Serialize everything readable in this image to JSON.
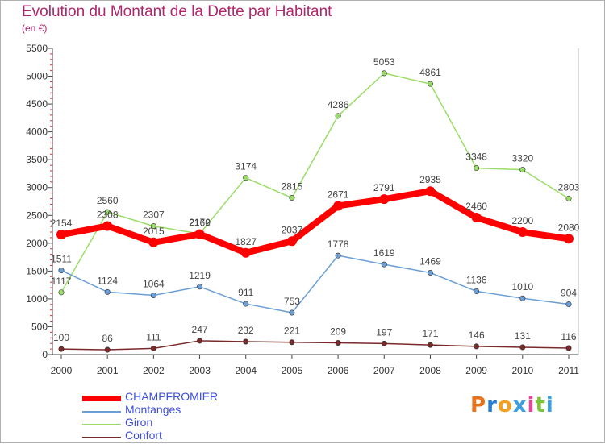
{
  "title": "Evolution du Montant de la Dette par Habitant",
  "subtitle": "(en €)",
  "logo_text": "Proxiti",
  "chart_data": {
    "type": "line",
    "title": "Evolution du Montant de la Dette par Habitant",
    "ylabel": "(en €)",
    "xlabel": "",
    "x": [
      "2000",
      "2001",
      "2002",
      "2003",
      "2004",
      "2005",
      "2006",
      "2007",
      "2008",
      "2009",
      "2010",
      "2011"
    ],
    "ylim": [
      0,
      5500
    ],
    "yticks": [
      0,
      500,
      1000,
      1500,
      2000,
      2500,
      3000,
      3500,
      4000,
      4500,
      5000,
      5500
    ],
    "grid": false,
    "legend_position": "bottom-left",
    "series": [
      {
        "name": "CHAMPFROMIER",
        "color": "#ff0000",
        "values": [
          2154,
          2308,
          2015,
          2162,
          1827,
          2037,
          2671,
          2791,
          2935,
          2460,
          2200,
          2080
        ]
      },
      {
        "name": "Montanges",
        "color": "#6b9fd6",
        "values": [
          1511,
          1124,
          1064,
          1219,
          911,
          753,
          1778,
          1619,
          1469,
          1136,
          1010,
          904
        ]
      },
      {
        "name": "Giron",
        "color": "#99dd66",
        "values": [
          1117,
          2560,
          2307,
          2170,
          3174,
          2815,
          4286,
          5053,
          4861,
          3348,
          3320,
          2803
        ]
      },
      {
        "name": "Confort",
        "color": "#7a2a2a",
        "values": [
          100,
          86,
          111,
          247,
          232,
          221,
          209,
          197,
          171,
          146,
          131,
          116
        ]
      }
    ]
  }
}
